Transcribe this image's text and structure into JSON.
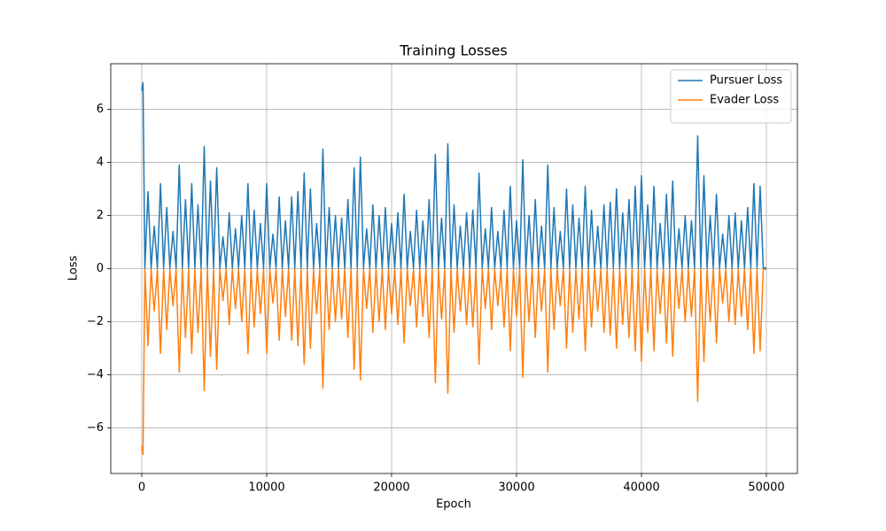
{
  "chart_data": {
    "type": "line",
    "title": "Training Losses",
    "x_label": "Epoch",
    "y_label": "Loss",
    "x": [
      0,
      100,
      250,
      500,
      750,
      1000,
      1250,
      1500,
      1750,
      2000,
      2250,
      2500,
      2750,
      3000,
      3250,
      3500,
      3750,
      4000,
      4250,
      4500,
      4750,
      5000,
      5250,
      5500,
      5750,
      6000,
      6250,
      6500,
      6750,
      7000,
      7250,
      7500,
      7750,
      8000,
      8250,
      8500,
      8750,
      9000,
      9250,
      9500,
      9750,
      10000,
      10250,
      10500,
      10750,
      11000,
      11250,
      11500,
      11750,
      12000,
      12250,
      12500,
      12750,
      13000,
      13250,
      13500,
      13750,
      14000,
      14250,
      14500,
      14750,
      15000,
      15250,
      15500,
      15750,
      16000,
      16250,
      16500,
      16750,
      17000,
      17250,
      17500,
      17750,
      18000,
      18250,
      18500,
      18750,
      19000,
      19250,
      19500,
      19750,
      20000,
      20250,
      20500,
      20750,
      21000,
      21250,
      21500,
      21750,
      22000,
      22250,
      22500,
      22750,
      23000,
      23250,
      23500,
      23750,
      24000,
      24250,
      24500,
      24750,
      25000,
      25250,
      25500,
      25750,
      26000,
      26250,
      26500,
      26750,
      27000,
      27250,
      27500,
      27750,
      28000,
      28250,
      28500,
      28750,
      29000,
      29250,
      29500,
      29750,
      30000,
      30250,
      30500,
      30750,
      31000,
      31250,
      31500,
      31750,
      32000,
      32250,
      32500,
      32750,
      33000,
      33250,
      33500,
      33750,
      34000,
      34250,
      34500,
      34750,
      35000,
      35250,
      35500,
      35750,
      36000,
      36250,
      36500,
      36750,
      37000,
      37250,
      37500,
      37750,
      38000,
      38250,
      38500,
      38750,
      39000,
      39250,
      39500,
      39750,
      40000,
      40250,
      40500,
      40750,
      41000,
      41250,
      41500,
      41750,
      42000,
      42250,
      42500,
      42750,
      43000,
      43250,
      43500,
      43750,
      44000,
      44250,
      44500,
      44750,
      45000,
      45250,
      45500,
      45750,
      46000,
      46250,
      46500,
      46750,
      47000,
      47250,
      47500,
      47750,
      48000,
      48250,
      48500,
      48750,
      49000,
      49250,
      49500,
      49750,
      50000
    ],
    "series": [
      {
        "name": "Pursuer Loss",
        "color": "#1f77b4",
        "values": [
          6.7,
          7.0,
          0.02,
          2.9,
          0.02,
          1.6,
          0.02,
          3.2,
          0.02,
          2.3,
          0.02,
          1.4,
          0.02,
          3.9,
          0.02,
          2.6,
          0.02,
          3.2,
          0.02,
          2.4,
          0.02,
          4.6,
          0.02,
          3.3,
          0.02,
          3.8,
          0.02,
          1.2,
          0.02,
          2.1,
          0.02,
          1.5,
          0.02,
          2.0,
          0.02,
          3.2,
          0.02,
          2.2,
          0.02,
          1.7,
          0.02,
          3.2,
          0.02,
          1.3,
          0.02,
          2.7,
          0.02,
          1.8,
          0.02,
          2.7,
          0.02,
          2.9,
          0.02,
          3.6,
          0.02,
          3.0,
          0.02,
          1.7,
          0.02,
          4.5,
          0.02,
          2.3,
          0.02,
          2.0,
          0.02,
          1.9,
          0.02,
          2.6,
          0.02,
          3.8,
          0.02,
          4.2,
          0.02,
          1.5,
          0.02,
          2.4,
          0.02,
          2.0,
          0.02,
          2.3,
          0.02,
          1.7,
          0.02,
          2.1,
          0.02,
          2.8,
          0.02,
          1.4,
          0.02,
          2.2,
          0.02,
          1.8,
          0.02,
          2.6,
          0.02,
          4.3,
          0.02,
          1.9,
          0.02,
          4.7,
          0.02,
          2.4,
          0.02,
          1.6,
          0.02,
          2.1,
          0.02,
          2.2,
          0.02,
          3.6,
          0.02,
          1.5,
          0.02,
          2.3,
          0.02,
          1.4,
          0.02,
          2.2,
          0.02,
          3.1,
          0.02,
          1.8,
          0.02,
          4.1,
          0.02,
          2.0,
          0.02,
          2.6,
          0.02,
          1.6,
          0.02,
          3.9,
          0.02,
          2.3,
          0.02,
          1.4,
          0.02,
          3.0,
          0.02,
          2.4,
          0.02,
          1.9,
          0.02,
          3.1,
          0.02,
          2.2,
          0.02,
          1.6,
          0.02,
          2.4,
          0.02,
          2.5,
          0.02,
          3.0,
          0.02,
          2.1,
          0.02,
          2.6,
          0.02,
          3.1,
          0.02,
          3.5,
          0.02,
          2.4,
          0.02,
          3.1,
          0.02,
          1.7,
          0.02,
          2.8,
          0.02,
          3.3,
          0.02,
          1.5,
          0.02,
          2.0,
          0.02,
          1.8,
          0.02,
          5.0,
          0.02,
          3.5,
          0.02,
          2.0,
          0.02,
          2.8,
          0.02,
          1.3,
          0.02,
          2.0,
          0.02,
          2.1,
          0.02,
          1.8,
          0.02,
          2.3,
          0.02,
          3.2,
          0.02,
          3.1,
          0.02,
          0.03
        ]
      },
      {
        "name": "Evader Loss",
        "color": "#ff7f0e",
        "values": [
          -6.7,
          -7.0,
          -0.02,
          -2.9,
          -0.02,
          -1.6,
          -0.02,
          -3.2,
          -0.02,
          -2.3,
          -0.02,
          -1.4,
          -0.02,
          -3.9,
          -0.02,
          -2.6,
          -0.02,
          -3.2,
          -0.02,
          -2.4,
          -0.02,
          -4.6,
          -0.02,
          -3.3,
          -0.02,
          -3.8,
          -0.02,
          -1.2,
          -0.02,
          -2.1,
          -0.02,
          -1.5,
          -0.02,
          -2.0,
          -0.02,
          -3.2,
          -0.02,
          -2.2,
          -0.02,
          -1.7,
          -0.02,
          -3.2,
          -0.02,
          -1.3,
          -0.02,
          -2.7,
          -0.02,
          -1.8,
          -0.02,
          -2.7,
          -0.02,
          -2.9,
          -0.02,
          -3.6,
          -0.02,
          -3.0,
          -0.02,
          -1.7,
          -0.02,
          -4.5,
          -0.02,
          -2.3,
          -0.02,
          -2.0,
          -0.02,
          -1.9,
          -0.02,
          -2.6,
          -0.02,
          -3.8,
          -0.02,
          -4.2,
          -0.02,
          -1.5,
          -0.02,
          -2.4,
          -0.02,
          -2.0,
          -0.02,
          -2.3,
          -0.02,
          -1.7,
          -0.02,
          -2.1,
          -0.02,
          -2.8,
          -0.02,
          -1.4,
          -0.02,
          -2.2,
          -0.02,
          -1.8,
          -0.02,
          -2.6,
          -0.02,
          -4.3,
          -0.02,
          -1.9,
          -0.02,
          -4.7,
          -0.02,
          -2.4,
          -0.02,
          -1.6,
          -0.02,
          -2.1,
          -0.02,
          -2.2,
          -0.02,
          -3.6,
          -0.02,
          -1.5,
          -0.02,
          -2.3,
          -0.02,
          -1.4,
          -0.02,
          -2.2,
          -0.02,
          -3.1,
          -0.02,
          -1.8,
          -0.02,
          -4.1,
          -0.02,
          -2.0,
          -0.02,
          -2.6,
          -0.02,
          -1.6,
          -0.02,
          -3.9,
          -0.02,
          -2.3,
          -0.02,
          -1.4,
          -0.02,
          -3.0,
          -0.02,
          -2.4,
          -0.02,
          -1.9,
          -0.02,
          -3.1,
          -0.02,
          -2.2,
          -0.02,
          -1.6,
          -0.02,
          -2.4,
          -0.02,
          -2.5,
          -0.02,
          -3.0,
          -0.02,
          -2.1,
          -0.02,
          -2.6,
          -0.02,
          -3.1,
          -0.02,
          -3.5,
          -0.02,
          -2.4,
          -0.02,
          -3.1,
          -0.02,
          -1.7,
          -0.02,
          -2.8,
          -0.02,
          -3.3,
          -0.02,
          -1.5,
          -0.02,
          -2.0,
          -0.02,
          -1.8,
          -0.02,
          -5.0,
          -0.02,
          -3.5,
          -0.02,
          -2.0,
          -0.02,
          -2.8,
          -0.02,
          -1.3,
          -0.02,
          -2.0,
          -0.02,
          -2.1,
          -0.02,
          -1.8,
          -0.02,
          -2.3,
          -0.02,
          -3.2,
          -0.02,
          -3.1,
          -0.02,
          -0.03
        ]
      }
    ],
    "xlim": [
      -2482,
      52482
    ],
    "ylim": [
      -7.72,
      7.72
    ],
    "xticks": [
      0,
      10000,
      20000,
      30000,
      40000,
      50000
    ],
    "yticks": [
      {
        "value": -6,
        "label": "−6"
      },
      {
        "value": -4,
        "label": "−4"
      },
      {
        "value": -2,
        "label": "−2"
      },
      0,
      2,
      4,
      6
    ],
    "grid": true,
    "legend": "upper right"
  }
}
